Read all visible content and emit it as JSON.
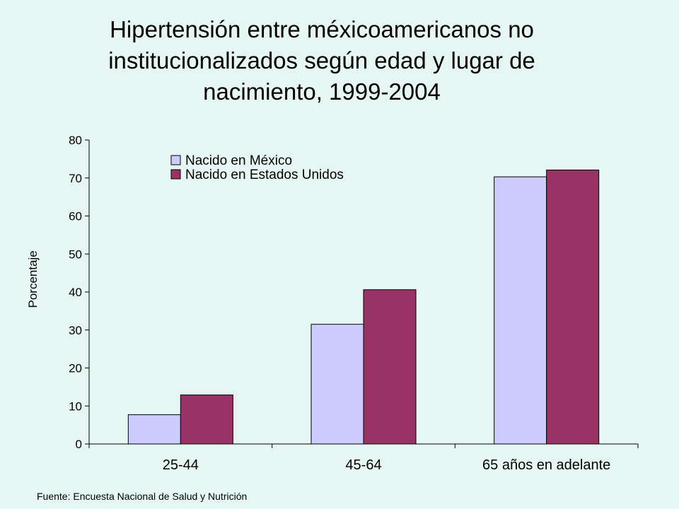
{
  "title_lines": [
    "Hipertensión entre méxicoamericanos no",
    "institucionalizados según edad y lugar de",
    "nacimiento, 1999-2004"
  ],
  "footer": "Fuente: Encuesta Nacional de Salud y Nutrición",
  "colors": {
    "background": "#e6f7f3",
    "series_mexico": "#ccccff",
    "series_usa": "#993366"
  },
  "chart_data": {
    "type": "bar",
    "title": "Hipertensión entre méxicoamericanos no institucionalizados según edad y lugar de nacimiento, 1999-2004",
    "xlabel": "",
    "ylabel": "Porcentaje",
    "ylim": [
      0,
      80
    ],
    "yticks": [
      "0",
      "10",
      "20",
      "30",
      "40",
      "50",
      "60",
      "70",
      "80"
    ],
    "categories": [
      "25-44",
      "45-64",
      "65 años en adelante"
    ],
    "series": [
      {
        "name": "Nacido en México",
        "values": [
          7.7,
          31.5,
          70.3
        ]
      },
      {
        "name": "Nacido en Estados Unidos",
        "values": [
          12.9,
          40.6,
          72.1
        ]
      }
    ],
    "legend_position": "top-left",
    "grid": false
  }
}
